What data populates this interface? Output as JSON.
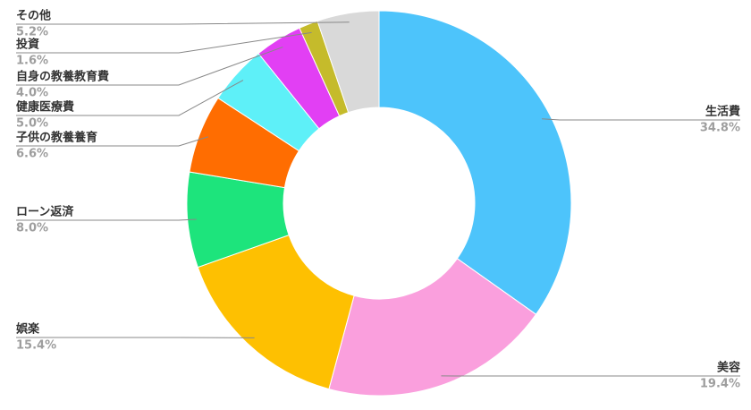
{
  "chart_data": {
    "type": "donut",
    "categories": [
      "生活費",
      "美容",
      "娯楽",
      "ローン返済",
      "子供の教養養育",
      "健康医療費",
      "自身の教養教育費",
      "投資",
      "その他"
    ],
    "values": [
      34.8,
      19.4,
      15.4,
      8.0,
      6.6,
      5.0,
      4.0,
      1.6,
      5.2
    ],
    "value_labels": [
      "34.8%",
      "19.4%",
      "15.4%",
      "8.0%",
      "6.6%",
      "5.0%",
      "4.0%",
      "1.6%",
      "5.2%"
    ],
    "colors": [
      "#4dc4fb",
      "#fa9fdd",
      "#fec001",
      "#1de47c",
      "#ff6d01",
      "#5ef0f8",
      "#e23ff4",
      "#c5bb2b",
      "#d9d9d9"
    ]
  }
}
